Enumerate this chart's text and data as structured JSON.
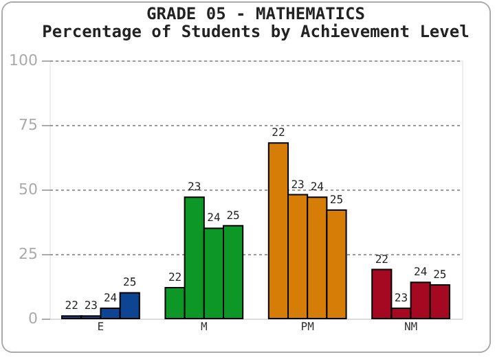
{
  "chart_data": {
    "type": "bar",
    "title": "GRADE 05 - MATHEMATICS",
    "subtitle": "Percentage of Students by Achievement Level",
    "categories": [
      "E",
      "M",
      "PM",
      "NM"
    ],
    "series": [
      {
        "name": "22",
        "colors": [
          "#0e4592",
          "#0c9726",
          "#d67d08",
          "#a50922"
        ],
        "values": [
          1,
          12,
          68,
          19
        ]
      },
      {
        "name": "23",
        "colors": [
          "#0e4592",
          "#0c9726",
          "#d67d08",
          "#a50922"
        ],
        "values": [
          1,
          47,
          48,
          4
        ]
      },
      {
        "name": "24",
        "colors": [
          "#0e4592",
          "#0c9726",
          "#d67d08",
          "#a50922"
        ],
        "values": [
          4,
          35,
          47,
          14
        ]
      },
      {
        "name": "25",
        "colors": [
          "#0e4592",
          "#0c9726",
          "#d67d08",
          "#a50922"
        ],
        "values": [
          10,
          36,
          42,
          13
        ]
      }
    ],
    "ylim": [
      0,
      100
    ],
    "yticks": [
      0,
      25,
      50,
      75,
      100
    ],
    "grid": "y"
  }
}
